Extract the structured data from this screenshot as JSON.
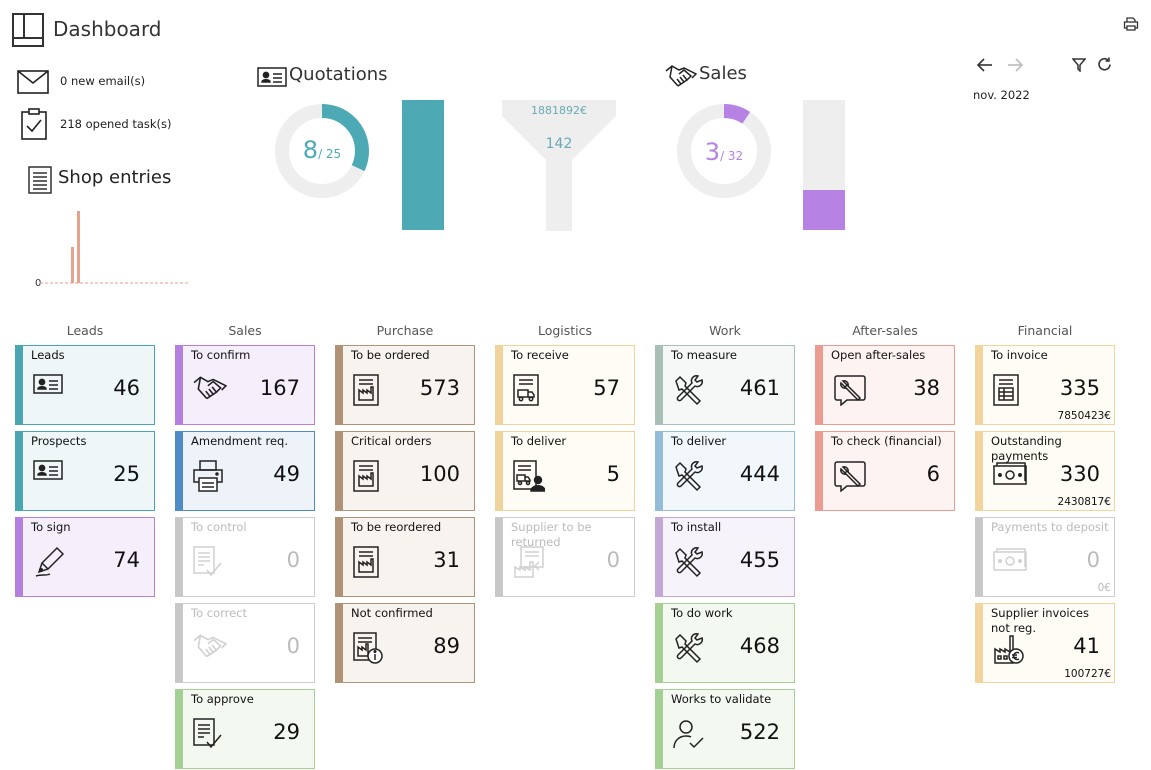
{
  "header": {
    "title": "Dashboard"
  },
  "summary": {
    "emails": "0 new email(s)",
    "tasks": "218 opened task(s)",
    "shop_title": "Shop entries",
    "shop_zero": "0"
  },
  "quotations": {
    "title": "Quotations",
    "count": "8",
    "total": "/ 25",
    "funnel_amount": "1881892€",
    "funnel_count": "142",
    "bar_fill_fraction": 1.0
  },
  "sales": {
    "title": "Sales",
    "count": "3",
    "total": "/ 32",
    "bar_fill_fraction": 0.31
  },
  "period": {
    "label": "nov. 2022"
  },
  "colors": {
    "teal": "#4daab5",
    "purple": "#b683e4",
    "gray": "#eeeeee",
    "shop_bar": "#e6a28c"
  },
  "columns": [
    {
      "title": "Leads",
      "cards": [
        {
          "label": "Leads",
          "value": "46",
          "icon": "id-card-icon",
          "color": "#4aa7b1",
          "bg": "#eef6f7"
        },
        {
          "label": "Prospects",
          "value": "25",
          "icon": "id-card-icon",
          "color": "#4aa7b1",
          "bg": "#eef6f7"
        },
        {
          "label": "To sign",
          "value": "74",
          "icon": "pen-icon",
          "color": "#b57fe0",
          "bg": "#f5effc"
        }
      ]
    },
    {
      "title": "Sales",
      "cards": [
        {
          "label": "To confirm",
          "value": "167",
          "icon": "handshake-icon",
          "color": "#b57fe0",
          "bg": "#f5effc"
        },
        {
          "label": "Amendment req.",
          "value": "49",
          "icon": "printer-icon",
          "color": "#4f8bc4",
          "bg": "#eef3f9"
        },
        {
          "label": "To control",
          "value": "0",
          "icon": "doc-check-icon",
          "color": "#c8c8c8",
          "bg": "#ffffff",
          "disabled": true
        },
        {
          "label": "To correct",
          "value": "0",
          "icon": "handshake-icon",
          "color": "#c8c8c8",
          "bg": "#ffffff",
          "disabled": true
        },
        {
          "label": "To approve",
          "value": "29",
          "icon": "doc-check-icon",
          "color": "#a6cf93",
          "bg": "#f3f8f1"
        }
      ]
    },
    {
      "title": "Purchase",
      "cards": [
        {
          "label": "To be ordered",
          "value": "573",
          "icon": "factory-doc-icon",
          "color": "#b09276",
          "bg": "#f7f3ef"
        },
        {
          "label": "Critical orders",
          "value": "100",
          "icon": "factory-doc-icon",
          "color": "#b09276",
          "bg": "#f7f3ef"
        },
        {
          "label": "To be reordered",
          "value": "31",
          "icon": "factory-doc-icon",
          "color": "#b09276",
          "bg": "#f7f3ef"
        },
        {
          "label": "Not confirmed",
          "value": "89",
          "icon": "factory-info-icon",
          "color": "#b09276",
          "bg": "#f7f3ef"
        }
      ]
    },
    {
      "title": "Logistics",
      "cards": [
        {
          "label": "To receive",
          "value": "57",
          "icon": "truck-doc-icon",
          "color": "#f0d29c",
          "bg": "#fffcf6"
        },
        {
          "label": "To deliver",
          "value": "5",
          "icon": "truck-person-icon",
          "color": "#f0d29c",
          "bg": "#fffcf6"
        },
        {
          "label": "Supplier to be returned",
          "value": "0",
          "icon": "factory-return-icon",
          "color": "#c8c8c8",
          "bg": "#ffffff",
          "disabled": true
        }
      ]
    },
    {
      "title": "Work",
      "cards": [
        {
          "label": "To measure",
          "value": "461",
          "icon": "tools-icon",
          "color": "#a8bfb6",
          "bg": "#f5f8f7"
        },
        {
          "label": "To deliver",
          "value": "444",
          "icon": "tools-icon",
          "color": "#93bcd8",
          "bg": "#f2f7fb"
        },
        {
          "label": "To install",
          "value": "455",
          "icon": "tools-icon",
          "color": "#c3a7d4",
          "bg": "#f7f3fa"
        },
        {
          "label": "To do work",
          "value": "468",
          "icon": "tools-icon",
          "color": "#a6cf93",
          "bg": "#f3f8f1"
        },
        {
          "label": "Works to validate",
          "value": "522",
          "icon": "person-check-icon",
          "color": "#a6cf93",
          "bg": "#f3f8f1"
        }
      ]
    },
    {
      "title": "After-sales",
      "cards": [
        {
          "label": "Open after-sales",
          "value": "38",
          "icon": "wrench-chat-icon",
          "color": "#ec9b90",
          "bg": "#fdf3f2"
        },
        {
          "label": "To check (financial)",
          "value": "6",
          "icon": "wrench-chat-icon",
          "color": "#ec9b90",
          "bg": "#fdf3f2"
        }
      ]
    },
    {
      "title": "Financial",
      "cards": [
        {
          "label": "To invoice",
          "value": "335",
          "sub": "7850423€",
          "icon": "invoice-icon",
          "color": "#f3d49d",
          "bg": "#fffcf6"
        },
        {
          "label": "Outstanding payments",
          "value": "330",
          "sub": "2430817€",
          "icon": "cash-icon",
          "color": "#f3d49d",
          "bg": "#fffcf6"
        },
        {
          "label": "Payments to deposit",
          "value": "0",
          "sub": "0€",
          "icon": "cash-icon",
          "color": "#c8c8c8",
          "bg": "#ffffff",
          "disabled": true
        },
        {
          "label": "Supplier invoices not reg.",
          "value": "41",
          "sub": "100727€",
          "icon": "factory-euro-icon",
          "color": "#f3d49d",
          "bg": "#fffcf6"
        }
      ]
    }
  ]
}
